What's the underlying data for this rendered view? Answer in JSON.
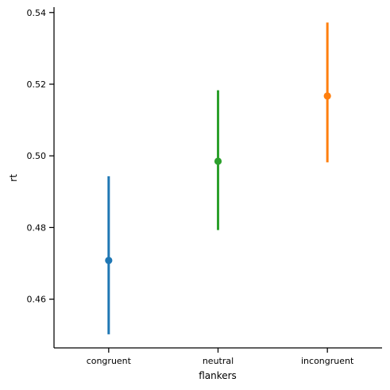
{
  "chart_data": {
    "type": "pointplot",
    "xlabel": "flankers",
    "ylabel": "rt",
    "categories": [
      "congruent",
      "neutral",
      "incongruent"
    ],
    "points": [
      {
        "category": "congruent",
        "mean": 0.4708,
        "ci_low": 0.4502,
        "ci_high": 0.4943,
        "color": "#1f77b4"
      },
      {
        "category": "neutral",
        "mean": 0.4985,
        "ci_low": 0.4793,
        "ci_high": 0.5183,
        "color": "#2ca02c"
      },
      {
        "category": "incongruent",
        "mean": 0.5167,
        "ci_low": 0.4982,
        "ci_high": 0.5372,
        "color": "#ff7f0e"
      }
    ],
    "yticks": [
      "0.46",
      "0.48",
      "0.50",
      "0.52",
      "0.54"
    ],
    "ylim": [
      0.4464,
      0.5415
    ],
    "grid": false,
    "legend": "none"
  }
}
